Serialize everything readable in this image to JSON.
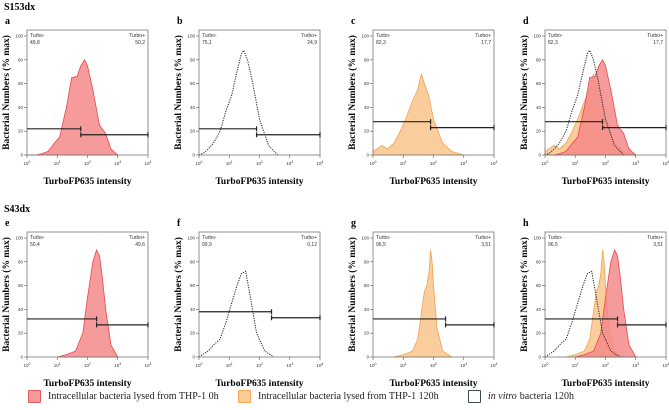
{
  "rows": [
    {
      "title": "S153dx",
      "panels": [
        "a",
        "b",
        "c",
        "d"
      ]
    },
    {
      "title": "S43dx",
      "panels": [
        "e",
        "f",
        "g",
        "h"
      ]
    }
  ],
  "axes": {
    "ylabel": "Bacterial Numbers (% max)",
    "xlabel": "TurboFP635 intensity",
    "y_ticks": [
      "0",
      "20",
      "40",
      "60",
      "80",
      "100"
    ],
    "x_ticks": [
      {
        "base": "10",
        "exp": "0"
      },
      {
        "base": "10",
        "exp": "1"
      },
      {
        "base": "10",
        "exp": "2"
      },
      {
        "base": "10",
        "exp": "3"
      },
      {
        "base": "10",
        "exp": "4"
      }
    ],
    "xlim": [
      1,
      10000
    ],
    "xscale": "log",
    "ylim": [
      0,
      100
    ],
    "gate_neg_label": "Turbo-",
    "gate_pos_label": "Turbo+"
  },
  "colors": {
    "red_fill": "#f58a8a",
    "red_stroke": "#e8474f",
    "orange_fill": "#f9c58b",
    "orange_stroke": "#f0a24f",
    "dotted": "#222222"
  },
  "chart_data": [
    {
      "panel": "a",
      "type": "area",
      "neg": "49,8",
      "pos": "50,2",
      "gate_x": 60,
      "gate_y": [
        22,
        17
      ],
      "series": [
        "red_0h"
      ]
    },
    {
      "panel": "b",
      "type": "area",
      "neg": "75,1",
      "pos": "24,9",
      "gate_x": 80,
      "gate_y": [
        22,
        17
      ],
      "series": [
        "vitro_120h"
      ]
    },
    {
      "panel": "c",
      "type": "area",
      "neg": "82,3",
      "pos": "17,7",
      "gate_x": 80,
      "gate_y": [
        28,
        23
      ],
      "series": [
        "orange_120h"
      ]
    },
    {
      "panel": "d",
      "type": "area",
      "neg": "82,3",
      "pos": "17,7",
      "gate_x": 80,
      "gate_y": [
        28,
        23
      ],
      "series": [
        "orange_120h",
        "red_0h",
        "vitro_120h"
      ]
    },
    {
      "panel": "e",
      "type": "area",
      "neg": "50,4",
      "pos": "49,6",
      "gate_x": 200,
      "gate_y": [
        32,
        27
      ],
      "series": [
        "red_0h_s43"
      ]
    },
    {
      "panel": "f",
      "type": "area",
      "neg": "99,9",
      "pos": "0,12",
      "gate_x": 250,
      "gate_y": [
        38,
        33
      ],
      "series": [
        "vitro_120h_s43"
      ]
    },
    {
      "panel": "g",
      "type": "area",
      "neg": "96,5",
      "pos": "3,51",
      "gate_x": 250,
      "gate_y": [
        32,
        27
      ],
      "series": [
        "orange_120h_s43"
      ]
    },
    {
      "panel": "h",
      "type": "area",
      "neg": "96,5",
      "pos": "3,51",
      "gate_x": 250,
      "gate_y": [
        32,
        27
      ],
      "series": [
        "orange_120h_s43",
        "red_0h_s43",
        "vitro_120h_s43"
      ]
    }
  ],
  "series": {
    "red_0h": {
      "style": "red",
      "x": [
        1,
        2,
        3,
        5,
        8,
        12,
        20,
        30,
        45,
        60,
        80,
        100,
        150,
        250,
        400,
        600,
        1000
      ],
      "y": [
        0,
        0,
        1,
        3,
        10,
        15,
        40,
        65,
        66,
        75,
        80,
        75,
        55,
        25,
        18,
        5,
        0
      ]
    },
    "vitro_120h": {
      "style": "dotted",
      "x": [
        1,
        1.5,
        2,
        3,
        5,
        8,
        12,
        18,
        25,
        30,
        40,
        60,
        100,
        200,
        400
      ],
      "y": [
        0,
        2,
        5,
        10,
        20,
        38,
        50,
        70,
        85,
        88,
        80,
        60,
        30,
        8,
        0
      ]
    },
    "orange_120h": {
      "style": "orange",
      "x": [
        1,
        2,
        3,
        5,
        8,
        12,
        20,
        30,
        40,
        50,
        70,
        100,
        200,
        400,
        1000
      ],
      "y": [
        3,
        8,
        5,
        10,
        20,
        30,
        45,
        55,
        68,
        60,
        50,
        30,
        10,
        3,
        0
      ]
    },
    "red_0h_s43": {
      "style": "red",
      "x": [
        10,
        20,
        40,
        70,
        100,
        150,
        200,
        250,
        300,
        400,
        600,
        1000
      ],
      "y": [
        0,
        2,
        5,
        20,
        50,
        80,
        90,
        85,
        70,
        40,
        10,
        0
      ]
    },
    "vitro_120h_s43": {
      "style": "dotted",
      "x": [
        1,
        2,
        3,
        5,
        8,
        12,
        18,
        25,
        35,
        50,
        80,
        150,
        300
      ],
      "y": [
        0,
        5,
        10,
        15,
        30,
        45,
        60,
        70,
        72,
        50,
        20,
        5,
        0
      ]
    },
    "orange_120h_s43": {
      "style": "orange",
      "x": [
        5,
        10,
        20,
        30,
        50,
        60,
        70,
        80,
        90,
        100,
        130,
        200,
        400
      ],
      "y": [
        0,
        2,
        5,
        15,
        55,
        60,
        70,
        90,
        80,
        60,
        25,
        5,
        0
      ]
    }
  },
  "legend": [
    {
      "style": "red",
      "label": "Intracellular bacteria lysed from THP-1 0h"
    },
    {
      "style": "orange",
      "label": "Intracellular bacteria lysed from THP-1 120h"
    },
    {
      "style": "white",
      "italic": "in vitro",
      "label": "bacteria 120h"
    }
  ]
}
